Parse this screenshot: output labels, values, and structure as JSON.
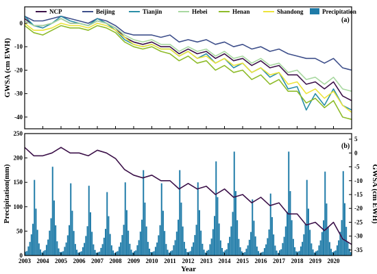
{
  "chart_data": [
    {
      "type": "line",
      "panel_label": "(a)",
      "ylabel": "GWSA (cm EWH)",
      "xlabel": "",
      "xlim": [
        2003,
        2021
      ],
      "ylim": [
        -45,
        7
      ],
      "yticks": [
        0,
        -10,
        -20,
        -30,
        -40
      ],
      "grid": false,
      "legend": "top",
      "x": [
        2003,
        2003.5,
        2004,
        2004.5,
        2005,
        2005.5,
        2006,
        2006.5,
        2007,
        2007.5,
        2008,
        2008.5,
        2009,
        2009.5,
        2010,
        2010.5,
        2011,
        2011.5,
        2012,
        2012.5,
        2013,
        2013.5,
        2014,
        2014.5,
        2015,
        2015.5,
        2016,
        2016.5,
        2017,
        2017.5,
        2018,
        2018.5,
        2019,
        2019.5,
        2020,
        2020.5,
        2021
      ],
      "series": [
        {
          "name": "NCP",
          "color": "#3b1048",
          "values": [
            2,
            -1,
            -1,
            0,
            2,
            0,
            0,
            -1,
            1,
            0,
            -2,
            -6,
            -8,
            -9,
            -8,
            -10,
            -10,
            -13,
            -11,
            -13,
            -12,
            -15,
            -13,
            -16,
            -15,
            -18,
            -16,
            -19,
            -18,
            -22,
            -22,
            -26,
            -25,
            -28,
            -25,
            -31,
            -33
          ]
        },
        {
          "name": "Beijing",
          "color": "#3d4e8a",
          "values": [
            3,
            1,
            1,
            2,
            3,
            2,
            1,
            0,
            2,
            1,
            -1,
            -4,
            -5,
            -5,
            -5,
            -6,
            -5,
            -8,
            -7,
            -8,
            -7,
            -9,
            -8,
            -10,
            -9,
            -11,
            -10,
            -12,
            -11,
            -13,
            -14,
            -15,
            -15,
            -17,
            -15,
            -19,
            -20
          ]
        },
        {
          "name": "Tianjin",
          "color": "#2a8ea6",
          "values": [
            3,
            -1,
            -2,
            0,
            3,
            1,
            0,
            -1,
            2,
            0,
            -3,
            -7,
            -9,
            -10,
            -9,
            -11,
            -11,
            -14,
            -12,
            -15,
            -13,
            -17,
            -15,
            -19,
            -17,
            -21,
            -19,
            -23,
            -21,
            -28,
            -27,
            -37,
            -30,
            -35,
            -28,
            -35,
            -37
          ]
        },
        {
          "name": "Hebei",
          "color": "#a8d8a0",
          "values": [
            1,
            -1,
            -1,
            0,
            2,
            0,
            0,
            -1,
            1,
            0,
            -2,
            -5,
            -7,
            -8,
            -7,
            -9,
            -9,
            -12,
            -10,
            -12,
            -11,
            -14,
            -12,
            -15,
            -14,
            -17,
            -15,
            -18,
            -17,
            -21,
            -20,
            -24,
            -23,
            -26,
            -23,
            -28,
            -29
          ]
        },
        {
          "name": "Henan",
          "color": "#8dbb28",
          "values": [
            -1,
            -4,
            -5,
            -3,
            -1,
            -2,
            -2,
            -3,
            -1,
            -2,
            -4,
            -8,
            -10,
            -11,
            -10,
            -12,
            -13,
            -16,
            -14,
            -17,
            -16,
            -20,
            -18,
            -21,
            -20,
            -24,
            -22,
            -26,
            -24,
            -29,
            -29,
            -34,
            -32,
            -36,
            -33,
            -40,
            -41
          ]
        },
        {
          "name": "Shandong",
          "color": "#ece43a",
          "values": [
            0,
            -3,
            -3,
            -2,
            0,
            -1,
            -1,
            -2,
            0,
            -1,
            -3,
            -6,
            -9,
            -10,
            -9,
            -11,
            -11,
            -14,
            -12,
            -15,
            -14,
            -17,
            -15,
            -18,
            -17,
            -21,
            -19,
            -22,
            -21,
            -26,
            -25,
            -30,
            -28,
            -32,
            -29,
            -35,
            -38
          ]
        }
      ]
    },
    {
      "type": "bar",
      "panel_label": "(b)",
      "xlabel": "Year",
      "ylabel": "Precipitation(mm)",
      "y2label": "GWSA (cm EWH)",
      "xlim": [
        2003,
        2021
      ],
      "ylim": [
        0,
        250
      ],
      "y2lim": [
        -37,
        7
      ],
      "yticks": [
        0,
        50,
        100,
        150,
        200,
        250
      ],
      "y2ticks": [
        5,
        0,
        -5,
        -10,
        -15,
        -20,
        -25,
        -30,
        -35
      ],
      "xticks": [
        "2003",
        "2004",
        "2005",
        "2006",
        "2007",
        "2008",
        "2009",
        "2010",
        "2011",
        "2012",
        "2013",
        "2014",
        "2015",
        "2016",
        "2017",
        "2018",
        "2019",
        "2020"
      ],
      "grid": false,
      "bar_series": {
        "name": "Precipitation",
        "color": "#1f7ba8"
      },
      "annual_peaks_mm": [
        155,
        182,
        148,
        143,
        130,
        150,
        175,
        148,
        175,
        150,
        193,
        213,
        115,
        127,
        213,
        155,
        172,
        173,
        184
      ],
      "line_series": {
        "name": "NCP",
        "color": "#3b1048",
        "axis": "right"
      }
    }
  ]
}
